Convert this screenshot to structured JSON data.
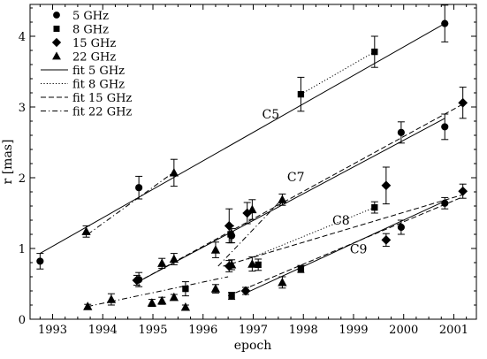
{
  "chart_data": {
    "type": "scatter",
    "xlabel": "epoch",
    "ylabel": "r [mas]",
    "xlim": [
      1992.55,
      2001.45
    ],
    "ylim": [
      0,
      4.45
    ],
    "xticks": [
      "1993",
      "1994",
      "1995",
      "1996",
      "1997",
      "1998",
      "1999",
      "2000",
      "2001"
    ],
    "yticks": [
      "0",
      "1",
      "2",
      "3",
      "4"
    ],
    "grid": false,
    "legend_position": "top-left",
    "series": [
      {
        "name": "5 GHz",
        "marker": "circle",
        "points": [
          {
            "x": 1992.75,
            "y": 0.82,
            "err": 0.11
          },
          {
            "x": 1994.72,
            "y": 1.86,
            "err": 0.16
          },
          {
            "x": 1994.72,
            "y": 0.56,
            "err": 0.1
          },
          {
            "x": 1996.57,
            "y": 1.18,
            "err": 0.1
          },
          {
            "x": 1999.95,
            "y": 2.64,
            "err": 0.15
          },
          {
            "x": 1999.95,
            "y": 1.3,
            "err": 0.1
          },
          {
            "x": 2000.82,
            "y": 4.18,
            "err": 0.26
          },
          {
            "x": 2000.82,
            "y": 2.72,
            "err": 0.18
          },
          {
            "x": 2000.82,
            "y": 1.64,
            "err": 0.08
          }
        ]
      },
      {
        "name": "8 GHz",
        "marker": "square",
        "points": [
          {
            "x": 1995.65,
            "y": 0.43,
            "err": 0.1
          },
          {
            "x": 1996.55,
            "y": 1.2,
            "err": 0.12
          },
          {
            "x": 1996.57,
            "y": 0.33,
            "err": 0.05
          },
          {
            "x": 1997.1,
            "y": 0.77,
            "err": 0.08
          },
          {
            "x": 1997.95,
            "y": 3.18,
            "err": 0.24
          },
          {
            "x": 1997.95,
            "y": 0.71,
            "err": 0.05
          },
          {
            "x": 1999.42,
            "y": 3.78,
            "err": 0.22
          },
          {
            "x": 1999.42,
            "y": 1.58,
            "err": 0.08
          }
        ]
      },
      {
        "name": "15 GHz",
        "marker": "diamond",
        "points": [
          {
            "x": 1994.68,
            "y": 0.55,
            "err": 0.07
          },
          {
            "x": 1996.52,
            "y": 1.32,
            "err": 0.24
          },
          {
            "x": 1996.52,
            "y": 0.75,
            "err": 0.08
          },
          {
            "x": 1996.85,
            "y": 0.4,
            "err": 0.05
          },
          {
            "x": 1996.88,
            "y": 1.5,
            "err": 0.15
          },
          {
            "x": 1999.65,
            "y": 1.89,
            "err": 0.26
          },
          {
            "x": 1999.65,
            "y": 1.12,
            "err": 0.09
          },
          {
            "x": 2001.18,
            "y": 3.06,
            "err": 0.22
          },
          {
            "x": 2001.18,
            "y": 1.81,
            "err": 0.1
          }
        ]
      },
      {
        "name": "22 GHz",
        "marker": "triangle",
        "points": [
          {
            "x": 1993.67,
            "y": 1.24,
            "err": 0.08
          },
          {
            "x": 1993.7,
            "y": 0.18,
            "err": 0.03
          },
          {
            "x": 1994.17,
            "y": 0.28,
            "err": 0.08
          },
          {
            "x": 1994.98,
            "y": 0.23,
            "err": 0.05
          },
          {
            "x": 1995.18,
            "y": 0.79,
            "err": 0.07
          },
          {
            "x": 1995.18,
            "y": 0.26,
            "err": 0.05
          },
          {
            "x": 1995.42,
            "y": 2.07,
            "err": 0.19
          },
          {
            "x": 1995.42,
            "y": 0.85,
            "err": 0.08
          },
          {
            "x": 1995.42,
            "y": 0.31,
            "err": 0.04
          },
          {
            "x": 1995.65,
            "y": 0.17,
            "err": 0.03
          },
          {
            "x": 1996.25,
            "y": 0.98,
            "err": 0.11
          },
          {
            "x": 1996.25,
            "y": 0.43,
            "err": 0.06
          },
          {
            "x": 1996.57,
            "y": 0.77,
            "err": 0.07
          },
          {
            "x": 1996.98,
            "y": 1.55,
            "err": 0.14
          },
          {
            "x": 1996.98,
            "y": 0.78,
            "err": 0.1
          },
          {
            "x": 1997.58,
            "y": 1.69,
            "err": 0.08
          },
          {
            "x": 1997.58,
            "y": 0.52,
            "err": 0.08
          }
        ]
      }
    ],
    "fits": [
      {
        "name": "fit 5 GHz",
        "style": "solid",
        "x": [
          1992.75,
          2000.82
        ],
        "y": [
          0.93,
          4.18
        ]
      },
      {
        "name": "fit 5 GHz",
        "style": "solid",
        "x": [
          1994.68,
          2000.82
        ],
        "y": [
          0.52,
          2.84
        ]
      },
      {
        "name": "fit 5 GHz",
        "style": "solid",
        "x": [
          1996.85,
          2000.82
        ],
        "y": [
          0.37,
          1.67
        ]
      },
      {
        "name": "fit 8 GHz",
        "style": "dotted",
        "x": [
          1997.95,
          1999.42
        ],
        "y": [
          3.18,
          3.78
        ]
      },
      {
        "name": "fit 8 GHz",
        "style": "dotted",
        "x": [
          1996.9,
          1999.42
        ],
        "y": [
          0.85,
          1.58
        ]
      },
      {
        "name": "fit 15 GHz",
        "style": "dashed",
        "x": [
          1994.68,
          2001.18
        ],
        "y": [
          0.52,
          3.04
        ]
      },
      {
        "name": "fit 15 GHz",
        "style": "dashed",
        "x": [
          1996.4,
          2001.18
        ],
        "y": [
          0.75,
          1.76
        ]
      },
      {
        "name": "fit 15 GHz",
        "style": "dashed",
        "x": [
          1996.5,
          2001.18
        ],
        "y": [
          0.33,
          1.73
        ]
      },
      {
        "name": "fit 22 GHz",
        "style": "dashdot",
        "x": [
          1993.7,
          1995.42
        ],
        "y": [
          1.2,
          2.08
        ]
      },
      {
        "name": "fit 22 GHz",
        "style": "dashdot",
        "x": [
          1993.7,
          1996.5
        ],
        "y": [
          0.18,
          0.6
        ]
      },
      {
        "name": "fit 22 GHz",
        "style": "dashdot",
        "x": [
          1996.3,
          1997.58
        ],
        "y": [
          0.75,
          1.7
        ]
      }
    ],
    "annotations": [
      {
        "text": "C5",
        "x": 1997.35,
        "y": 2.84
      },
      {
        "text": "C7",
        "x": 1997.85,
        "y": 1.95
      },
      {
        "text": "C8",
        "x": 1998.75,
        "y": 1.34
      },
      {
        "text": "C9",
        "x": 1999.1,
        "y": 0.93
      }
    ]
  }
}
